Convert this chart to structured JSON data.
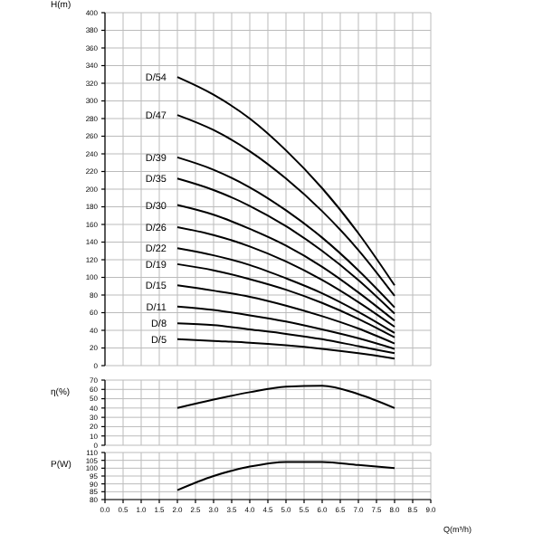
{
  "chart_data": [
    {
      "type": "line",
      "ylabel": "H(m)",
      "x": [
        2,
        3,
        4,
        5,
        6,
        7,
        8
      ],
      "xlim": [
        0,
        9
      ],
      "xticks": [
        0,
        0.5,
        1,
        1.5,
        2,
        2.5,
        3,
        3.5,
        4,
        4.5,
        5,
        5.5,
        6,
        6.5,
        7,
        7.5,
        8,
        8.5,
        9
      ],
      "ylim": [
        0,
        400
      ],
      "yticks": [
        0,
        20,
        40,
        60,
        80,
        100,
        120,
        140,
        160,
        180,
        200,
        220,
        240,
        260,
        280,
        300,
        320,
        340,
        360,
        380,
        400
      ],
      "grid": true,
      "marker": "none",
      "tick_labels": "y",
      "series": [
        {
          "name": "D/54",
          "color": "#000000",
          "values": [
            327,
            307,
            280,
            244,
            201,
            150,
            91
          ]
        },
        {
          "name": "D/47",
          "color": "#000000",
          "values": [
            284,
            267,
            243,
            212,
            175,
            131,
            79
          ]
        },
        {
          "name": "D/39",
          "color": "#000000",
          "values": [
            236,
            222,
            202,
            176,
            145,
            108,
            66
          ]
        },
        {
          "name": "D/35",
          "color": "#000000",
          "values": [
            212,
            199,
            181,
            158,
            130,
            97,
            59
          ]
        },
        {
          "name": "D/30",
          "color": "#000000",
          "values": [
            182,
            171,
            155,
            136,
            112,
            83,
            51
          ]
        },
        {
          "name": "D/26",
          "color": "#000000",
          "values": [
            157,
            148,
            135,
            118,
            97,
            72,
            44
          ]
        },
        {
          "name": "D/22",
          "color": "#000000",
          "values": [
            133,
            125,
            114,
            99,
            82,
            61,
            37
          ]
        },
        {
          "name": "D/19",
          "color": "#000000",
          "values": [
            115,
            108,
            98,
            86,
            71,
            53,
            32
          ]
        },
        {
          "name": "D/15",
          "color": "#000000",
          "values": [
            91,
            85,
            78,
            68,
            56,
            42,
            25
          ]
        },
        {
          "name": "D/11",
          "color": "#000000",
          "values": [
            67,
            63,
            57,
            50,
            41,
            31,
            19
          ]
        },
        {
          "name": "D/8",
          "color": "#000000",
          "values": [
            48,
            46,
            41,
            36,
            30,
            22,
            14
          ]
        },
        {
          "name": "D/5",
          "color": "#000000",
          "values": [
            30,
            28,
            26,
            23,
            19,
            14,
            8
          ]
        }
      ]
    },
    {
      "type": "line",
      "ylabel": "η(%)",
      "x": [
        2,
        3,
        4,
        5,
        6,
        7,
        8
      ],
      "xlim": [
        0,
        9
      ],
      "xticks": [
        0,
        0.5,
        1,
        1.5,
        2,
        2.5,
        3,
        3.5,
        4,
        4.5,
        5,
        5.5,
        6,
        6.5,
        7,
        7.5,
        8,
        8.5,
        9
      ],
      "ylim": [
        0,
        70
      ],
      "yticks": [
        0,
        10,
        20,
        30,
        40,
        50,
        60,
        70
      ],
      "grid": true,
      "marker": "none",
      "tick_labels": "y",
      "series": [
        {
          "color": "#000000",
          "values": [
            40,
            49,
            57,
            63,
            64,
            55,
            40
          ]
        }
      ]
    },
    {
      "type": "line",
      "ylabel": "P(W)",
      "xlabel": "Q(m³/h)",
      "x": [
        2,
        3,
        4,
        5,
        6,
        7,
        8
      ],
      "xlim": [
        0,
        9
      ],
      "xticks": [
        {
          "value": 0,
          "label": "0.0"
        },
        {
          "value": 0.5,
          "label": "0.5"
        },
        {
          "value": 1,
          "label": "1.0"
        },
        {
          "value": 1.5,
          "label": "1.5"
        },
        {
          "value": 2,
          "label": "2.0"
        },
        {
          "value": 2.5,
          "label": "2.5"
        },
        {
          "value": 3,
          "label": "3.0"
        },
        {
          "value": 3.5,
          "label": "3.5"
        },
        {
          "value": 4,
          "label": "4.0"
        },
        {
          "value": 4.5,
          "label": "4.5"
        },
        {
          "value": 5,
          "label": "5.0"
        },
        {
          "value": 5.5,
          "label": "5.5"
        },
        {
          "value": 6,
          "label": "6.0"
        },
        {
          "value": 6.5,
          "label": "6.5"
        },
        {
          "value": 7,
          "label": "7.0"
        },
        {
          "value": 7.5,
          "label": "7.5"
        },
        {
          "value": 8,
          "label": "8.0"
        },
        {
          "value": 8.5,
          "label": "8.5"
        },
        {
          "value": 9,
          "label": "9.0"
        }
      ],
      "ylim": [
        80,
        110
      ],
      "yticks": [
        80,
        85,
        90,
        95,
        100,
        105,
        110
      ],
      "grid": true,
      "marker": "none",
      "series": [
        {
          "color": "#000000",
          "values": [
            86,
            95,
            101,
            104,
            104,
            102,
            100
          ]
        }
      ]
    }
  ]
}
